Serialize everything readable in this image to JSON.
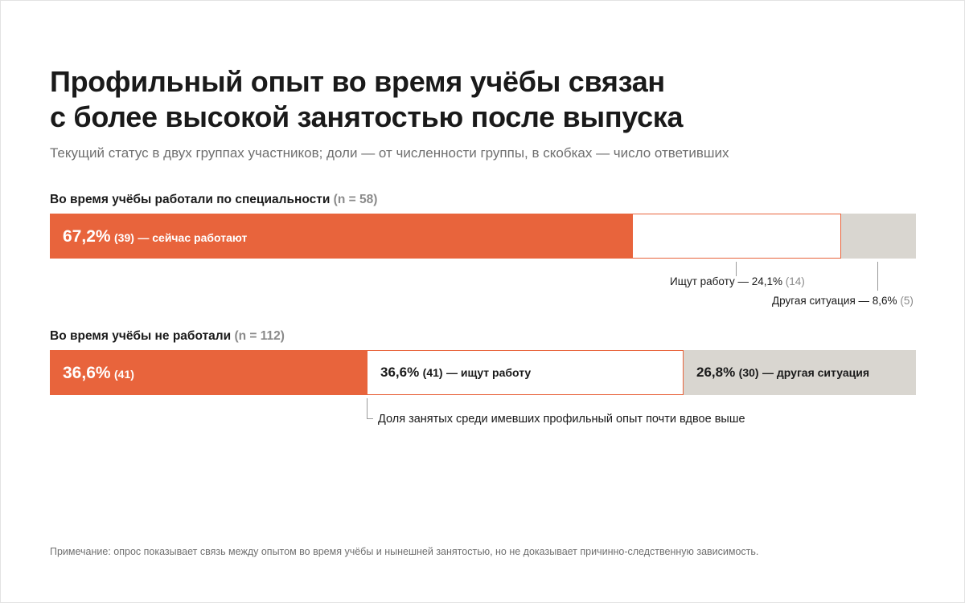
{
  "title": {
    "line1": "Профильный опыт во время учёбы связан",
    "line2": "с более высокой занятостью после выпуска"
  },
  "subtitle": "Текущий статус в двух группах участников; доли — от численности группы, в скобках — число ответивших",
  "chart_data": {
    "type": "bar",
    "orientation": "horizontal-stacked-100",
    "title": "Профильный опыт во время учёбы связан с более высокой занятостью после выпуска",
    "groups": [
      {
        "label": "Во время учёбы работали по специальности",
        "n_text": "(n = 58)",
        "segments": [
          {
            "category": "employed",
            "pct": 67.2,
            "pct_text": "67,2%",
            "count_text": "(39)",
            "desc_text": "— сейчас работают",
            "color": "#e8643c"
          },
          {
            "category": "searching",
            "pct": 24.1,
            "pct_text": "24,1%",
            "count_text": "(14)",
            "desc_text": "Ищут работу —",
            "color": "#ffffff"
          },
          {
            "category": "other",
            "pct": 8.6,
            "pct_text": "8,6%",
            "count_text": "(5)",
            "desc_text": "Другая ситуация —",
            "color": "#d9d6d0"
          }
        ]
      },
      {
        "label": "Во время учёбы не работали",
        "n_text": "(n = 112)",
        "segments": [
          {
            "category": "employed",
            "pct": 36.6,
            "pct_text": "36,6%",
            "count_text": "(41)",
            "desc_text": "",
            "color": "#e8643c"
          },
          {
            "category": "searching",
            "pct": 36.6,
            "pct_text": "36,6%",
            "count_text": "(41)",
            "desc_text": "— ищут работу",
            "color": "#ffffff"
          },
          {
            "category": "other",
            "pct": 26.8,
            "pct_text": "26,8%",
            "count_text": "(30)",
            "desc_text": "— другая ситуация",
            "color": "#d9d6d0"
          }
        ]
      }
    ],
    "annotation": "Доля занятых среди имевших профильный опыт почти вдвое выше",
    "colors": {
      "accent": "#e8643c",
      "neutral": "#d9d6d0",
      "outline": "#e8643c"
    }
  },
  "footnote": "Примечание: опрос показывает связь между опытом во время учёбы и нынешней занятостью, но не доказывает причинно-следственную зависимость."
}
